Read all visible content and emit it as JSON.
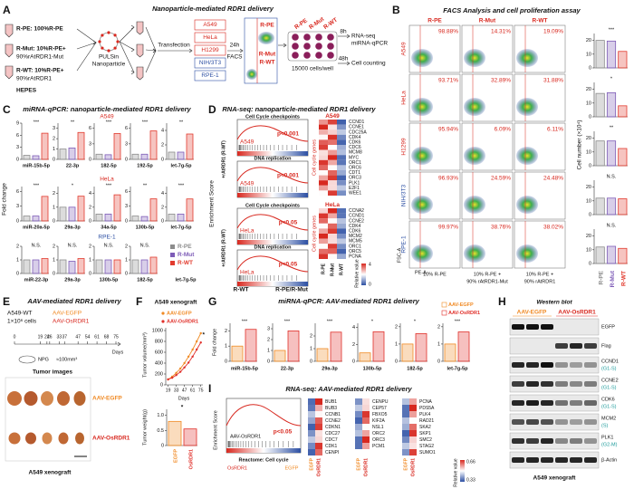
{
  "a": {
    "label": "A",
    "title": "Nanoparticle-mediated RDR1 delivery",
    "groups": [
      [
        "R-PE: 100%R-PE"
      ],
      [
        "R-Mut: 10%R-PE+",
        "90%rAtRDR1-Mut"
      ],
      [
        "R-WT: 10%R-PE+",
        "90%rAtRDR1"
      ]
    ],
    "buffer": "HEPES",
    "nanoparticle": [
      "PULSin",
      "Nanoparticle"
    ],
    "step1": "Transfection",
    "cell_lines": [
      "A549",
      "HeLa",
      "H1299",
      "NIH/3T3",
      "RPE-1"
    ],
    "step2": [
      "24h",
      "FACS"
    ],
    "sorted": [
      "R-PE",
      "R-Mut",
      "R-WT"
    ],
    "plate": [
      "R-PE",
      "R-Mut",
      "R-WT"
    ],
    "density": "15000 cells/well",
    "assays": [
      {
        "time": "8h",
        "lines": [
          "RNA-seq",
          "miRNA-qPCR"
        ]
      },
      {
        "time": "48h",
        "lines": [
          "Cell counting"
        ]
      }
    ]
  },
  "b": {
    "label": "B",
    "title": "FACS Analysis and cell proliferation assay",
    "conditions": [
      "R-PE",
      "R-Mut",
      "R-WT"
    ],
    "cell_lines": [
      "A549",
      "HeLa",
      "H1299",
      "NIH/3T3",
      "RPE-1"
    ],
    "facs_percent": [
      [
        "98.88%",
        "14.31%",
        "19.09%"
      ],
      [
        "93.71%",
        "32.89%",
        "31.88%"
      ],
      [
        "95.94%",
        "6.09%",
        "6.11%"
      ],
      [
        "96.93%",
        "24.59%",
        "24.48%"
      ],
      [
        "99.97%",
        "38.76%",
        "38.02%"
      ]
    ],
    "y_axis": "FSC-A",
    "x_axis": "PE-A",
    "gates": [
      [
        "10% R-PE"
      ],
      [
        "10% R-PE +",
        "90% rAtRDR1-Mut"
      ],
      [
        "10% R-PE +",
        "90% rAtRDR1"
      ]
    ],
    "cell_number": {
      "type": "bar",
      "y_label": "Cell number (×10⁴)",
      "categories": [
        "R-PE",
        "R-Mut",
        "R-WT"
      ],
      "colors": [
        "#8c8c8c",
        "#7e5cb7",
        "#e23b2e"
      ],
      "ylim": [
        0,
        25
      ],
      "yticks": [
        0,
        10,
        20
      ],
      "groups": [
        {
          "values": [
            20,
            19.5,
            12
          ],
          "significance": "***"
        },
        {
          "values": [
            17,
            17.5,
            8
          ],
          "significance": "*"
        },
        {
          "values": [
            18,
            18,
            12.5
          ],
          "significance": "**"
        },
        {
          "values": [
            12,
            12,
            11.5
          ],
          "significance": "N.S."
        },
        {
          "values": [
            12,
            12.5,
            11
          ],
          "significance": "N.S."
        }
      ]
    }
  },
  "c": {
    "label": "C",
    "type": "bar",
    "title": "miRNA-qPCR: nanoparticle-mediated RDR1 delivery",
    "y_label": "Fold change",
    "legend": [
      "R-PE",
      "R-Mut",
      "R-WT"
    ],
    "colors": [
      "#8c8c8c",
      "#7e5cb7",
      "#e23b2e"
    ],
    "rows": [
      {
        "cell_line": "A549",
        "charts": [
          {
            "name": "miR-15b-5p",
            "significance": "***",
            "values": [
              1,
              0.9,
              6.5
            ],
            "ylim": [
              0,
              9
            ],
            "yticks": [
              0,
              3,
              6,
              9
            ]
          },
          {
            "name": "22-3p",
            "significance": "**",
            "values": [
              1,
              1.1,
              2.6
            ],
            "ylim": [
              0,
              3.5
            ],
            "yticks": [
              0,
              1,
              2,
              3
            ]
          },
          {
            "name": "182-5p",
            "significance": "***",
            "values": [
              1,
              0.9,
              5
            ],
            "ylim": [
              0,
              7
            ],
            "yticks": [
              0,
              3,
              6
            ]
          },
          {
            "name": "192-5p",
            "significance": "***",
            "values": [
              1,
              1,
              5.5
            ],
            "ylim": [
              0,
              7
            ],
            "yticks": [
              0,
              3,
              6
            ]
          },
          {
            "name": "let-7g-5p",
            "significance": "**",
            "values": [
              1,
              1,
              3.5
            ],
            "ylim": [
              0,
              5
            ],
            "yticks": [
              0,
              2,
              4
            ]
          }
        ]
      },
      {
        "cell_line": "HeLa",
        "charts": [
          {
            "name": "miR-20a-5p",
            "significance": "***",
            "values": [
              1,
              1,
              5
            ],
            "ylim": [
              0,
              7
            ],
            "yticks": [
              0,
              3,
              6
            ]
          },
          {
            "name": "29a-3p",
            "significance": "*",
            "values": [
              1,
              1,
              1.8
            ],
            "ylim": [
              0,
              2.5
            ],
            "yticks": [
              0,
              1,
              2
            ]
          },
          {
            "name": "34a-5p",
            "significance": "***",
            "values": [
              1,
              1,
              3.8
            ],
            "ylim": [
              0,
              5
            ],
            "yticks": [
              0,
              2,
              4
            ]
          },
          {
            "name": "130b-5p",
            "significance": "**",
            "values": [
              1,
              0.9,
              4.5
            ],
            "ylim": [
              0,
              7
            ],
            "yticks": [
              0,
              3,
              6
            ]
          },
          {
            "name": "let-7g-5p",
            "significance": "***",
            "values": [
              1,
              1,
              3.2
            ],
            "ylim": [
              0,
              5
            ],
            "yticks": [
              0,
              2,
              4
            ]
          }
        ]
      },
      {
        "cell_line": "RPE-1",
        "legend_label": "let-7g-5p",
        "charts": [
          {
            "name": "miR-22-3p",
            "significance": "N.S.",
            "values": [
              1,
              1,
              1.1
            ],
            "ylim": [
              0,
              2
            ],
            "yticks": [
              0,
              1,
              2
            ]
          },
          {
            "name": "29a-3p",
            "significance": "N.S.",
            "values": [
              1,
              0.9,
              1.1
            ],
            "ylim": [
              0,
              2
            ],
            "yticks": [
              0,
              1,
              2
            ]
          },
          {
            "name": "130b-5p",
            "significance": "N.S.",
            "values": [
              1,
              1,
              1
            ],
            "ylim": [
              0,
              2
            ],
            "yticks": [
              0,
              1,
              2
            ]
          },
          {
            "name": "182-5p",
            "significance": "N.S.",
            "values": [
              1,
              1,
              1.2
            ],
            "ylim": [
              0,
              2
            ],
            "yticks": [
              0,
              1,
              2
            ]
          }
        ]
      }
    ]
  },
  "d": {
    "label": "D",
    "title": "RNA-seq: nanoparticle-mediated RDR1 delivery",
    "y_label": "Enrichment Score",
    "group_labels": [
      "+rAtRDR1 (R-WT)",
      "+rAtRDR1 (R-WT)"
    ],
    "gsea": [
      {
        "name": "Cell Cycle checkpoints",
        "p": "p<0.001",
        "cell": "A549"
      },
      {
        "name": "DNA replication",
        "p": "p<0.001",
        "cell": "A549"
      },
      {
        "name": "Cell Cycle checkpoints",
        "p": "p<0.05",
        "cell": "HeLa"
      },
      {
        "name": "DNA replication",
        "p": "p<0.05",
        "cell": "HeLa"
      }
    ],
    "x_labels": [
      "R-WT",
      "R-PE/R-Mut"
    ],
    "heatmaps": [
      {
        "cell": "A549",
        "genes": [
          "CCND1",
          "CCNE1",
          "CDC25A",
          "CDK4",
          "CDK6",
          "CDC6",
          "MCM8",
          "MYC",
          "ORC1",
          "ORC6",
          "CDT1",
          "ORC3",
          "PLK1",
          "E2F1",
          "WEE1"
        ]
      },
      {
        "cell": "HeLa",
        "genes": [
          "CCNA2",
          "CCND1",
          "CCNE2",
          "CDK4",
          "CDK6",
          "MCM2",
          "MCM5",
          "ORC1",
          "ORC5",
          "PCNA"
        ]
      }
    ],
    "gene_label": "Cell cycle genes",
    "columns": [
      "R-PE",
      "R-Mut",
      "R-WT"
    ],
    "scale_title": "Relative value",
    "scale": [
      4,
      0
    ]
  },
  "e": {
    "label": "E",
    "title": "AAV-mediated RDR1 delivery",
    "cells": [
      "A549-WT",
      "1×10⁶ cells"
    ],
    "treatments": [
      "AAV-EGFP",
      "AAV-OsRDR1"
    ],
    "timeline": {
      "xlim": [
        0,
        75
      ],
      "xticks": [
        0,
        19,
        24,
        26,
        33,
        37,
        47,
        54,
        61,
        68,
        75
      ],
      "x_label": "Days"
    },
    "mouse": "NPG",
    "volume": "≈100mm³",
    "images_title": "Tumor images",
    "model": "A549 xenograft"
  },
  "f": {
    "label": "F",
    "volume": {
      "type": "line",
      "title": "A549 xenograft",
      "y_label": "Tumor volume(mm³)",
      "x_label": "Days",
      "x": [
        19,
        26,
        33,
        40,
        47,
        54,
        61,
        68,
        75
      ],
      "series": [
        {
          "name": "AAV-EGFP",
          "color": "#f08a24",
          "values": [
            100,
            150,
            220,
            300,
            400,
            520,
            650,
            800,
            950
          ]
        },
        {
          "name": "AAV-OsRDR1",
          "color": "#e0302a",
          "values": [
            100,
            130,
            180,
            240,
            320,
            410,
            520,
            650,
            780
          ]
        }
      ],
      "xlim": [
        15,
        77
      ],
      "xticks": [
        19,
        33,
        47,
        61,
        75
      ],
      "ylim": [
        0,
        1000
      ],
      "yticks": [
        0,
        200,
        400,
        600,
        800,
        1000
      ],
      "significance": "*"
    },
    "weight": {
      "type": "bar",
      "y_label": "Tumor weight(g)",
      "categories": [
        "EGFP",
        "OsRDR1"
      ],
      "colors": [
        "#f08a24",
        "#e0302a"
      ],
      "values": [
        0.8,
        0.55
      ],
      "ylim": [
        0,
        1.2
      ],
      "yticks": [
        0,
        0.5,
        {
          "value": 1,
          "label": "1.0"
        }
      ],
      "significance": "*"
    }
  },
  "g": {
    "label": "G",
    "type": "bar",
    "title": "miRNA-qPCR: AAV-mediated RDR1 delivery",
    "y_label": "Fold change",
    "legend": [
      "AAV-EGFP",
      "AAV-OsRDR1"
    ],
    "colors": [
      "#f08a24",
      "#e0302a"
    ],
    "charts": [
      {
        "name": "miR-15b-5p",
        "significance": "***",
        "values": [
          1,
          2.1
        ],
        "ylim": [
          0,
          2.5
        ],
        "yticks": [
          0,
          1,
          2
        ]
      },
      {
        "name": "22-3p",
        "significance": "***",
        "values": [
          1,
          2.8
        ],
        "ylim": [
          0,
          3.5
        ],
        "yticks": [
          0,
          1,
          2,
          3
        ]
      },
      {
        "name": "29a-3p",
        "significance": "***",
        "values": [
          1,
          2.3
        ],
        "ylim": [
          0,
          3
        ],
        "yticks": [
          0,
          1,
          2
        ]
      },
      {
        "name": "130b-5p",
        "significance": "*",
        "values": [
          1,
          3.5
        ],
        "ylim": [
          0,
          4.5
        ],
        "yticks": [
          0,
          2,
          4
        ]
      },
      {
        "name": "182-5p",
        "significance": "*",
        "values": [
          1,
          1.6
        ],
        "ylim": [
          0,
          2.2
        ],
        "yticks": [
          0,
          1,
          2
        ]
      },
      {
        "name": "let-7g-5p",
        "significance": "***",
        "values": [
          1,
          1.7
        ],
        "ylim": [
          0,
          2.2
        ],
        "yticks": [
          0,
          1,
          2
        ]
      }
    ]
  },
  "h": {
    "label": "H",
    "title": "Western blot",
    "groups": [
      "AAV-EGFP",
      "AAV-OsRDR1"
    ],
    "proteins": [
      {
        "name": "EGFP"
      },
      {
        "name": "Flag"
      },
      {
        "name": "CCND1",
        "phase": "(G1-S)"
      },
      {
        "name": "CCNE2",
        "phase": "(G1-S)"
      },
      {
        "name": "CDK6",
        "phase": "(G1-S)"
      },
      {
        "name": "MCM2",
        "phase": "(S)"
      },
      {
        "name": "PLK1",
        "phase": "(G2-M)"
      },
      {
        "name": "β-Actin"
      }
    ],
    "model": "A549 xenograft"
  },
  "i": {
    "label": "I",
    "title": "RNA-seq: AAV-mediated RDR1 delivery",
    "y_label": "Enrichment Score",
    "p": "p<0.05",
    "group": "AAV-OsRDR1",
    "pathway": "Reactome: Cell cycle",
    "x_labels": [
      "OsRDR1",
      "EGFP"
    ],
    "gene_columns": [
      [
        "BUB1",
        "BUB3",
        "CCNB1",
        "CCNE2",
        "CDKN1",
        "CDC27",
        "CDC7",
        "CDK1",
        "CENPI"
      ],
      [
        "CENPU",
        "CEP57",
        "FBXO5",
        "KIF2A",
        "NSL1",
        "ORC2",
        "ORC3",
        "PCM1"
      ],
      [
        "PCNA",
        "PDS5A",
        "PLK4",
        "RAD21",
        "SKA2",
        "SKP1",
        "SMC2",
        "STAG2",
        "SUMO1"
      ]
    ],
    "columns": [
      "EGFP",
      "OsRDR1"
    ],
    "scale_title": "Relative value",
    "scale": [
      0.66,
      0.33
    ]
  }
}
